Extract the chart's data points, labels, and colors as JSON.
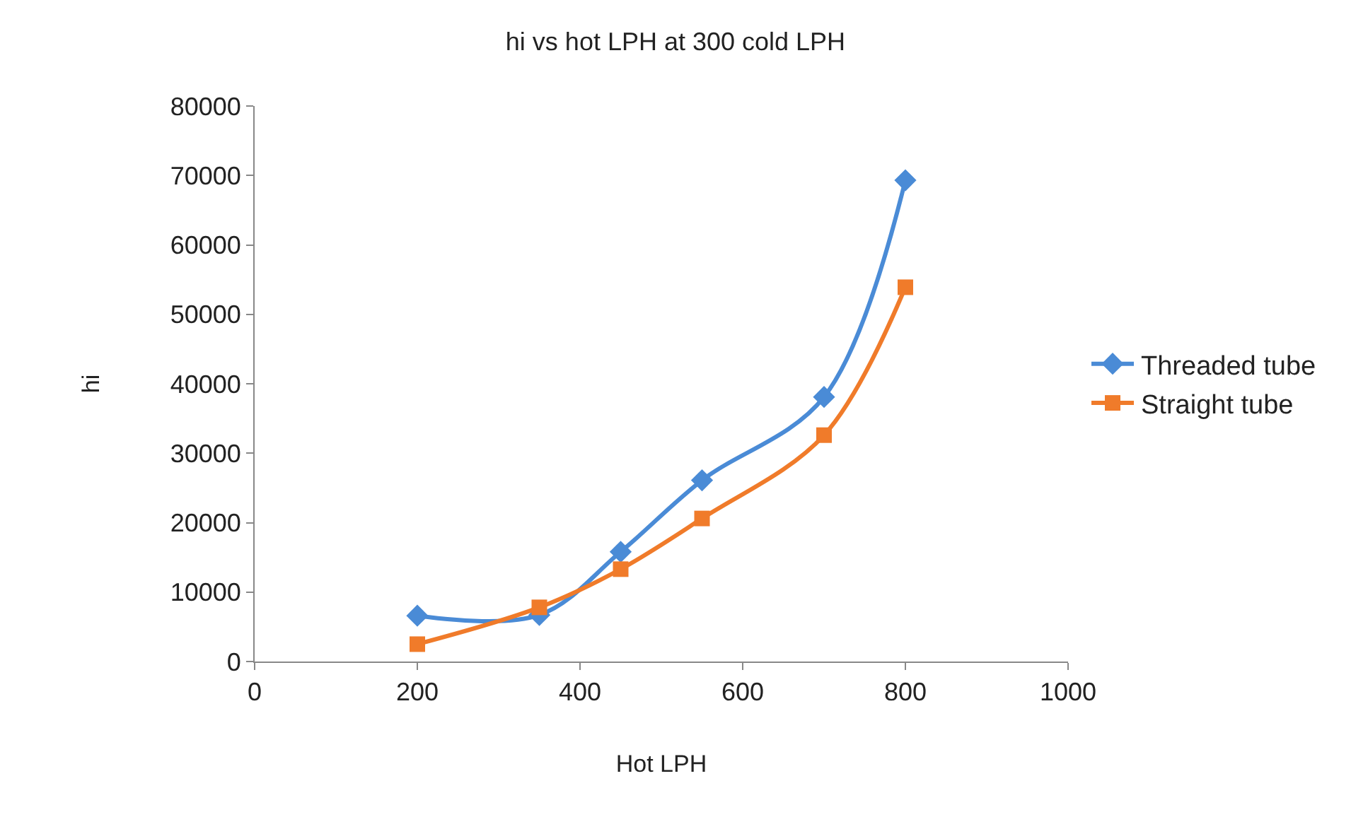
{
  "chart_data": {
    "type": "line",
    "title": "hi vs hot LPH at 300 cold LPH",
    "xlabel": "Hot LPH",
    "ylabel": "hi",
    "x": [
      200,
      350,
      450,
      550,
      700,
      800
    ],
    "series": [
      {
        "name": "Threaded tube",
        "color": "#4a8bd6",
        "values": [
          6600,
          6700,
          15800,
          26100,
          38100,
          69300
        ],
        "marker": "diamond"
      },
      {
        "name": "Straight tube",
        "color": "#f07b2a",
        "values": [
          2500,
          7800,
          13300,
          20600,
          32600,
          53900
        ],
        "marker": "square"
      }
    ],
    "xlim": [
      0,
      1000
    ],
    "xticks": [
      0,
      200,
      400,
      600,
      800,
      1000
    ],
    "ylim": [
      0,
      80000
    ],
    "yticks": [
      0,
      10000,
      20000,
      30000,
      40000,
      50000,
      60000,
      70000,
      80000
    ],
    "grid": false,
    "legend": "right",
    "line_style": "solid"
  }
}
